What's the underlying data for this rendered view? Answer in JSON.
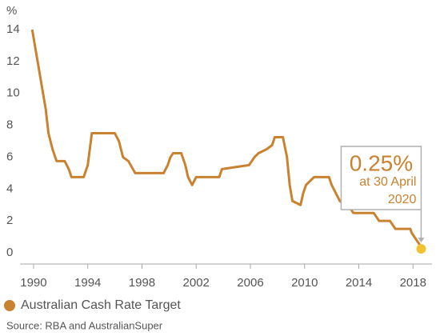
{
  "chart_data": {
    "type": "line",
    "ylabel": "%",
    "x": [
      1989.9,
      1990.3,
      1990.6,
      1990.9,
      1991.1,
      1991.4,
      1991.7,
      1992.3,
      1992.6,
      1992.8,
      1993.7,
      1994.0,
      1994.3,
      1996.0,
      1996.3,
      1996.6,
      1997.0,
      1997.5,
      1999.6,
      1999.9,
      2000.1,
      2000.3,
      2000.9,
      2001.2,
      2001.4,
      2001.7,
      2002.0,
      2003.7,
      2003.9,
      2005.9,
      2006.3,
      2006.6,
      2007.2,
      2007.6,
      2007.8,
      2008.4,
      2008.7,
      2008.9,
      2009.1,
      2009.7,
      2009.9,
      2010.1,
      2010.4,
      2010.7,
      2011.8,
      2012.0,
      2012.3,
      2012.6,
      2013.0,
      2013.4,
      2013.6,
      2015.1,
      2015.3,
      2015.5,
      2016.3,
      2016.5,
      2016.7,
      2017.8,
      2017.9,
      2018.1,
      2018.3,
      2018.5,
      2018.6
    ],
    "series": [
      {
        "name": "Australian Cash Rate Target",
        "color": "#c98230",
        "values": [
          14,
          12,
          10.5,
          9,
          7.5,
          6.5,
          5.75,
          5.75,
          5.25,
          4.75,
          4.75,
          5.5,
          7.5,
          7.5,
          7.0,
          6.0,
          5.75,
          5.0,
          5.0,
          5.5,
          6.0,
          6.25,
          6.25,
          5.5,
          4.75,
          4.25,
          4.75,
          4.75,
          5.25,
          5.5,
          6.0,
          6.25,
          6.5,
          6.75,
          7.25,
          7.25,
          6.0,
          4.25,
          3.25,
          3.0,
          3.75,
          4.25,
          4.5,
          4.75,
          4.75,
          4.25,
          3.75,
          3.25,
          3.0,
          2.75,
          2.5,
          2.5,
          2.25,
          2.0,
          2.0,
          1.75,
          1.5,
          1.5,
          1.25,
          1.0,
          0.75,
          0.5,
          0.25
        ]
      }
    ],
    "highlight_color": "#f2c230",
    "annotation": {
      "label": "0.25%",
      "text": [
        "at 30 April",
        "2020"
      ]
    },
    "xlim": [
      1989,
      2019.4
    ],
    "xticks": [
      1990,
      1994,
      1998,
      2002,
      2006,
      2010,
      2014,
      2018
    ],
    "ylim": [
      -0.7,
      14.2
    ],
    "yticks": [
      0,
      2,
      4,
      6,
      8,
      10,
      12,
      14
    ],
    "grid": false,
    "source": "Source: RBA and AustralianSuper"
  }
}
